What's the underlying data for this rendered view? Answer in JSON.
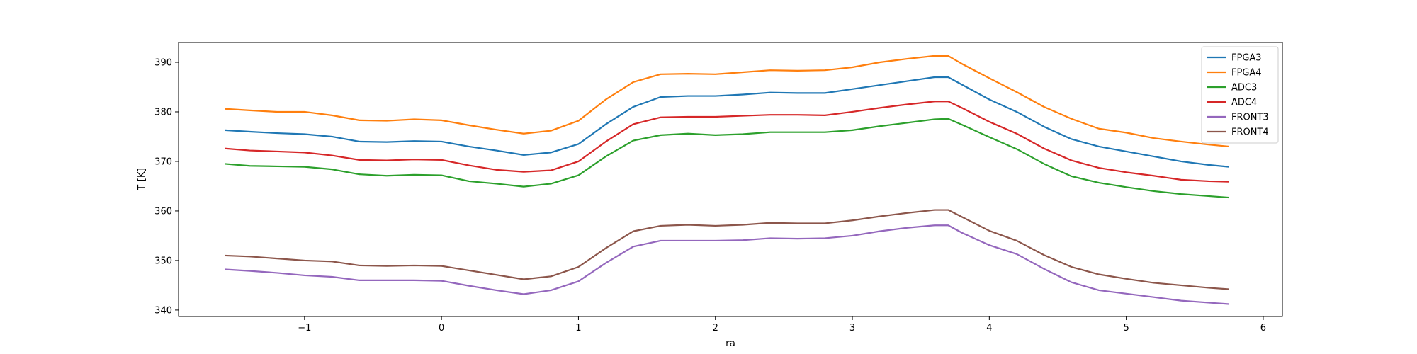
{
  "chart_data": {
    "type": "line",
    "title": "",
    "xlabel": "ra",
    "ylabel": "T [K]",
    "xlim": [
      -1.92,
      6.14
    ],
    "ylim": [
      338.7,
      394.0
    ],
    "xticks": [
      -1,
      0,
      1,
      2,
      3,
      4,
      5,
      6
    ],
    "xtick_labels": [
      "−1",
      "0",
      "1",
      "2",
      "3",
      "4",
      "5",
      "6"
    ],
    "yticks": [
      340,
      350,
      360,
      370,
      380,
      390
    ],
    "ytick_labels": [
      "340",
      "350",
      "360",
      "370",
      "380",
      "390"
    ],
    "grid": false,
    "legend_position": "top-right",
    "x": [
      -1.58,
      -1.4,
      -1.2,
      -1.0,
      -0.8,
      -0.6,
      -0.4,
      -0.2,
      0.0,
      0.2,
      0.4,
      0.6,
      0.8,
      1.0,
      1.2,
      1.4,
      1.6,
      1.8,
      2.0,
      2.2,
      2.4,
      2.6,
      2.8,
      3.0,
      3.2,
      3.4,
      3.6,
      3.7,
      3.8,
      4.0,
      4.2,
      4.4,
      4.6,
      4.8,
      5.0,
      5.2,
      5.4,
      5.6,
      5.75
    ],
    "series": [
      {
        "name": "FPGA3",
        "color": "#1f77b4",
        "values": [
          376.3,
          376.0,
          375.7,
          375.5,
          375.0,
          374.0,
          373.9,
          374.1,
          374.0,
          373.0,
          372.2,
          371.3,
          371.8,
          373.5,
          377.5,
          381.0,
          383.0,
          383.2,
          383.2,
          383.5,
          383.9,
          383.8,
          383.8,
          384.6,
          385.4,
          386.2,
          387.0,
          387.0,
          385.5,
          382.5,
          380.0,
          377.0,
          374.5,
          373.0,
          372.0,
          371.0,
          370.0,
          369.3,
          368.9
        ]
      },
      {
        "name": "FPGA4",
        "color": "#ff7f0e",
        "values": [
          380.6,
          380.3,
          380.0,
          380.0,
          379.3,
          378.3,
          378.2,
          378.5,
          378.3,
          377.3,
          376.4,
          375.6,
          376.2,
          378.2,
          382.5,
          386.0,
          387.6,
          387.7,
          387.6,
          388.0,
          388.4,
          388.3,
          388.4,
          389.0,
          390.0,
          390.7,
          391.3,
          391.3,
          389.7,
          386.8,
          384.0,
          381.0,
          378.6,
          376.6,
          375.8,
          374.7,
          374.0,
          373.4,
          373.0
        ]
      },
      {
        "name": "ADC3",
        "color": "#2ca02c",
        "values": [
          369.5,
          369.1,
          369.0,
          368.9,
          368.4,
          367.4,
          367.1,
          367.3,
          367.2,
          366.0,
          365.5,
          364.9,
          365.5,
          367.2,
          371.0,
          374.2,
          375.3,
          375.6,
          375.3,
          375.5,
          375.9,
          375.9,
          375.9,
          376.3,
          377.1,
          377.8,
          378.5,
          378.6,
          377.4,
          374.9,
          372.5,
          369.5,
          367.0,
          365.7,
          364.8,
          364.0,
          363.4,
          363.0,
          362.7
        ]
      },
      {
        "name": "ADC4",
        "color": "#d62728",
        "values": [
          372.6,
          372.2,
          372.0,
          371.8,
          371.2,
          370.3,
          370.2,
          370.4,
          370.3,
          369.2,
          368.3,
          367.9,
          368.2,
          370.0,
          374.0,
          377.5,
          378.9,
          379.0,
          379.0,
          379.2,
          379.4,
          379.4,
          379.3,
          380.0,
          380.8,
          381.5,
          382.1,
          382.1,
          380.8,
          378.0,
          375.6,
          372.6,
          370.2,
          368.7,
          367.8,
          367.1,
          366.3,
          366.0,
          365.9
        ]
      },
      {
        "name": "FRONT3",
        "color": "#9467bd",
        "values": [
          348.2,
          347.9,
          347.5,
          347.0,
          346.7,
          346.0,
          346.0,
          346.0,
          345.9,
          344.9,
          344.0,
          343.2,
          344.0,
          345.8,
          349.5,
          352.8,
          354.0,
          354.0,
          354.0,
          354.1,
          354.5,
          354.4,
          354.5,
          355.0,
          355.9,
          356.6,
          357.1,
          357.1,
          355.6,
          353.1,
          351.3,
          348.3,
          345.6,
          344.0,
          343.3,
          342.6,
          341.9,
          341.5,
          341.2
        ]
      },
      {
        "name": "FRONT4",
        "color": "#8c564b",
        "values": [
          351.0,
          350.8,
          350.4,
          350.0,
          349.8,
          349.0,
          348.9,
          349.0,
          348.9,
          348.0,
          347.1,
          346.2,
          346.8,
          348.7,
          352.5,
          355.9,
          357.0,
          357.2,
          357.0,
          357.2,
          357.6,
          357.5,
          357.5,
          358.1,
          358.9,
          359.6,
          360.2,
          360.2,
          358.8,
          356.0,
          354.0,
          351.1,
          348.7,
          347.2,
          346.3,
          345.5,
          345.0,
          344.5,
          344.2
        ]
      }
    ]
  }
}
